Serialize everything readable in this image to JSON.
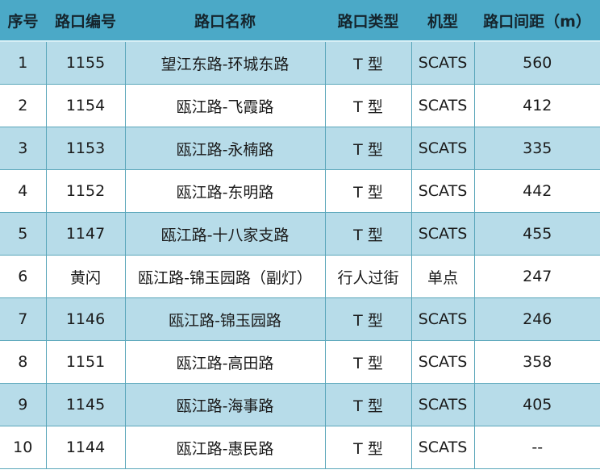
{
  "headers": [
    "序号",
    "路口编号",
    "路口名称",
    "路口类型",
    "机型",
    "路口间距（m）"
  ],
  "rows": [
    [
      "1",
      "1155",
      "望江东路-环城东路",
      "T 型",
      "SCATS",
      "560"
    ],
    [
      "2",
      "1154",
      "瓯江路-飞霞路",
      "T 型",
      "SCATS",
      "412"
    ],
    [
      "3",
      "1153",
      "瓯江路-永楠路",
      "T 型",
      "SCATS",
      "335"
    ],
    [
      "4",
      "1152",
      "瓯江路-东明路",
      "T 型",
      "SCATS",
      "442"
    ],
    [
      "5",
      "1147",
      "瓯江路-十八家支路",
      "T 型",
      "SCATS",
      "455"
    ],
    [
      "6",
      "黄闪",
      "瓯江路-锦玉园路（副灯）",
      "行人过街",
      "单点",
      "247"
    ],
    [
      "7",
      "1146",
      "瓯江路-锦玉园路",
      "T 型",
      "SCATS",
      "246"
    ],
    [
      "8",
      "1151",
      "瓯江路-高田路",
      "T 型",
      "SCATS",
      "358"
    ],
    [
      "9",
      "1145",
      "瓯江路-海事路",
      "T 型",
      "SCATS",
      "405"
    ],
    [
      "10",
      "1144",
      "瓯江路-惠民路",
      "T 型",
      "SCATS",
      "--"
    ]
  ],
  "colors": {
    "header": "#4ba9c7",
    "odd_row": "#b7dce9",
    "border": "#5aa6ba"
  }
}
